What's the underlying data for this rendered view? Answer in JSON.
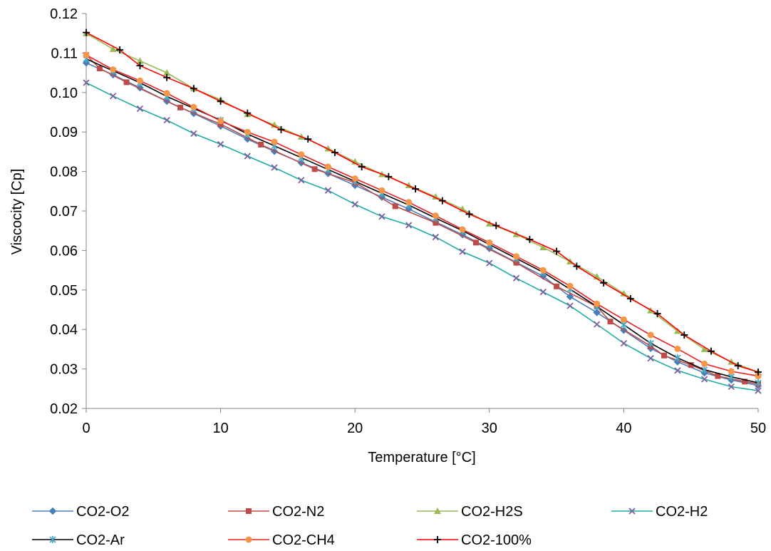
{
  "chart_data": {
    "type": "line",
    "title": "",
    "xlabel": "Temperature [°C]",
    "ylabel": "Viscocity [Cp]",
    "xlim": [
      0,
      50
    ],
    "ylim": [
      0.02,
      0.12
    ],
    "x_ticks": [
      "0",
      "10",
      "20",
      "30",
      "40",
      "50"
    ],
    "y_ticks": [
      "0.02",
      "0.03",
      "0.04",
      "0.05",
      "0.06",
      "0.07",
      "0.08",
      "0.09",
      "0.10",
      "0.11",
      "0.12"
    ],
    "grid": false,
    "legend_position": "bottom",
    "series": [
      {
        "name": "CO2-O2",
        "color": "#4a7ebb",
        "marker": "diamond",
        "points": [
          [
            0,
            0.1075
          ],
          [
            2,
            0.1045
          ],
          [
            4,
            0.1012
          ],
          [
            6,
            0.0978
          ],
          [
            8,
            0.0947
          ],
          [
            10,
            0.0915
          ],
          [
            12,
            0.0882
          ],
          [
            14,
            0.0851
          ],
          [
            16,
            0.0822
          ],
          [
            18,
            0.0795
          ],
          [
            20,
            0.0765
          ],
          [
            22,
            0.0735
          ],
          [
            24,
            0.0705
          ],
          [
            26,
            0.0672
          ],
          [
            28,
            0.064
          ],
          [
            30,
            0.0605
          ],
          [
            32,
            0.057
          ],
          [
            34,
            0.0535
          ],
          [
            36,
            0.0483
          ],
          [
            38,
            0.0443
          ],
          [
            40,
            0.0398
          ],
          [
            42,
            0.0352
          ],
          [
            44,
            0.0318
          ],
          [
            46,
            0.029
          ],
          [
            48,
            0.0272
          ],
          [
            50,
            0.0258
          ]
        ]
      },
      {
        "name": "CO2-N2",
        "color": "#be4b48",
        "marker": "square",
        "points": [
          [
            0,
            0.1095
          ],
          [
            1,
            0.1061
          ],
          [
            3,
            0.1026
          ],
          [
            7,
            0.0962
          ],
          [
            10,
            0.092
          ],
          [
            13,
            0.0868
          ],
          [
            17,
            0.0806
          ],
          [
            20,
            0.0772
          ],
          [
            23,
            0.0712
          ],
          [
            26,
            0.067
          ],
          [
            29,
            0.062
          ],
          [
            32,
            0.0569
          ],
          [
            35,
            0.0509
          ],
          [
            38,
            0.0458
          ],
          [
            39,
            0.042
          ],
          [
            42,
            0.0358
          ],
          [
            43,
            0.0334
          ],
          [
            45,
            0.031
          ],
          [
            47,
            0.0282
          ],
          [
            49,
            0.0268
          ],
          [
            50,
            0.0262
          ]
        ]
      },
      {
        "name": "CO2-H2S",
        "color": "#98b954",
        "marker": "triangle",
        "points": [
          [
            0,
            0.115
          ],
          [
            2,
            0.111
          ],
          [
            4,
            0.108
          ],
          [
            6,
            0.105
          ],
          [
            8,
            0.101
          ],
          [
            10,
            0.0982
          ],
          [
            12,
            0.0945
          ],
          [
            14,
            0.0918
          ],
          [
            16,
            0.0888
          ],
          [
            18,
            0.0858
          ],
          [
            20,
            0.0825
          ],
          [
            22,
            0.0793
          ],
          [
            24,
            0.0765
          ],
          [
            26,
            0.0736
          ],
          [
            28,
            0.0705
          ],
          [
            30,
            0.0668
          ],
          [
            32,
            0.0641
          ],
          [
            34,
            0.0608
          ],
          [
            36,
            0.0572
          ],
          [
            38,
            0.0534
          ],
          [
            40,
            0.0491
          ],
          [
            42,
            0.0448
          ],
          [
            44,
            0.0396
          ],
          [
            46,
            0.035
          ],
          [
            48,
            0.0318
          ],
          [
            50,
            0.0292
          ]
        ]
      },
      {
        "name": "CO2-H2",
        "color": "#1cada2",
        "marker": "x",
        "points": [
          [
            0,
            0.1025
          ],
          [
            2,
            0.0991
          ],
          [
            4,
            0.0959
          ],
          [
            6,
            0.093
          ],
          [
            8,
            0.0896
          ],
          [
            10,
            0.0869
          ],
          [
            12,
            0.0839
          ],
          [
            14,
            0.081
          ],
          [
            16,
            0.0778
          ],
          [
            18,
            0.0752
          ],
          [
            20,
            0.0717
          ],
          [
            22,
            0.0686
          ],
          [
            24,
            0.0664
          ],
          [
            26,
            0.0634
          ],
          [
            28,
            0.0597
          ],
          [
            30,
            0.0568
          ],
          [
            32,
            0.053
          ],
          [
            34,
            0.0495
          ],
          [
            36,
            0.046
          ],
          [
            38,
            0.0413
          ],
          [
            40,
            0.0365
          ],
          [
            42,
            0.0327
          ],
          [
            44,
            0.0296
          ],
          [
            46,
            0.0274
          ],
          [
            48,
            0.0255
          ],
          [
            50,
            0.0245
          ]
        ]
      },
      {
        "name": "CO2-Ar",
        "color": "#000000",
        "marker": "asterisk",
        "points": [
          [
            0,
            0.1085
          ],
          [
            2,
            0.1055
          ],
          [
            4,
            0.1025
          ],
          [
            6,
            0.099
          ],
          [
            8,
            0.096
          ],
          [
            10,
            0.093
          ],
          [
            12,
            0.0895
          ],
          [
            14,
            0.0865
          ],
          [
            16,
            0.0835
          ],
          [
            18,
            0.0805
          ],
          [
            20,
            0.0775
          ],
          [
            22,
            0.0745
          ],
          [
            24,
            0.0715
          ],
          [
            26,
            0.0682
          ],
          [
            28,
            0.065
          ],
          [
            30,
            0.0615
          ],
          [
            32,
            0.058
          ],
          [
            34,
            0.0545
          ],
          [
            36,
            0.0502
          ],
          [
            38,
            0.0458
          ],
          [
            40,
            0.0412
          ],
          [
            42,
            0.0365
          ],
          [
            44,
            0.0328
          ],
          [
            46,
            0.0298
          ],
          [
            48,
            0.028
          ],
          [
            50,
            0.0265
          ]
        ]
      },
      {
        "name": "CO2-CH4",
        "color": "#f79646",
        "line_color": "#ee1c1c",
        "marker": "circle",
        "points": [
          [
            0,
            0.1095
          ],
          [
            2,
            0.1058
          ],
          [
            4,
            0.103
          ],
          [
            6,
            0.0998
          ],
          [
            8,
            0.0963
          ],
          [
            10,
            0.0928
          ],
          [
            12,
            0.09
          ],
          [
            14,
            0.0875
          ],
          [
            16,
            0.0843
          ],
          [
            18,
            0.0812
          ],
          [
            20,
            0.0782
          ],
          [
            22,
            0.0752
          ],
          [
            24,
            0.0722
          ],
          [
            26,
            0.0688
          ],
          [
            28,
            0.0653
          ],
          [
            30,
            0.062
          ],
          [
            32,
            0.0585
          ],
          [
            34,
            0.055
          ],
          [
            36,
            0.051
          ],
          [
            38,
            0.0465
          ],
          [
            40,
            0.0425
          ],
          [
            42,
            0.0386
          ],
          [
            44,
            0.0351
          ],
          [
            46,
            0.0313
          ],
          [
            48,
            0.0294
          ],
          [
            50,
            0.0282
          ]
        ]
      },
      {
        "name": "CO2-100%",
        "color": "#000000",
        "line_color": "#ff0000",
        "marker": "plus",
        "points": [
          [
            0,
            0.1152
          ],
          [
            2.5,
            0.1108
          ],
          [
            4,
            0.1068
          ],
          [
            6,
            0.1038
          ],
          [
            8,
            0.101
          ],
          [
            10,
            0.0978
          ],
          [
            12,
            0.0948
          ],
          [
            14.5,
            0.0906
          ],
          [
            16.5,
            0.0882
          ],
          [
            18.5,
            0.0848
          ],
          [
            20.5,
            0.0812
          ],
          [
            22.5,
            0.0787
          ],
          [
            24.5,
            0.0756
          ],
          [
            26.5,
            0.0726
          ],
          [
            28.5,
            0.0692
          ],
          [
            30.5,
            0.0663
          ],
          [
            33,
            0.0628
          ],
          [
            35,
            0.0598
          ],
          [
            36.5,
            0.056
          ],
          [
            38.5,
            0.0518
          ],
          [
            40.5,
            0.0478
          ],
          [
            42.5,
            0.044
          ],
          [
            44.5,
            0.0386
          ],
          [
            46.5,
            0.0345
          ],
          [
            48.5,
            0.0308
          ],
          [
            50,
            0.0292
          ]
        ]
      }
    ]
  }
}
